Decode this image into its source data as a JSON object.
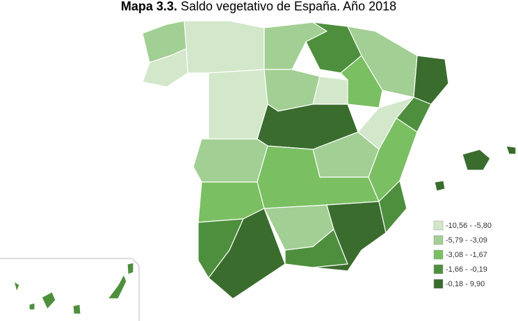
{
  "map_data": {
    "title_bold": "Mapa 3.3.",
    "title_rest": "Saldo vegetativo de España. Año 2018",
    "legend": [
      {
        "label": "-10,56 - -5,80",
        "color": "#d3e7cb"
      },
      {
        "label": "-5,79 - -3,09",
        "color": "#a2cf93"
      },
      {
        "label": "-3,08 - -1,67",
        "color": "#7abf62"
      },
      {
        "label": "-1,66 - -0,19",
        "color": "#4e8f3e"
      },
      {
        "label": "-0,18 - 9,90",
        "color": "#3a6c2e"
      }
    ]
  }
}
